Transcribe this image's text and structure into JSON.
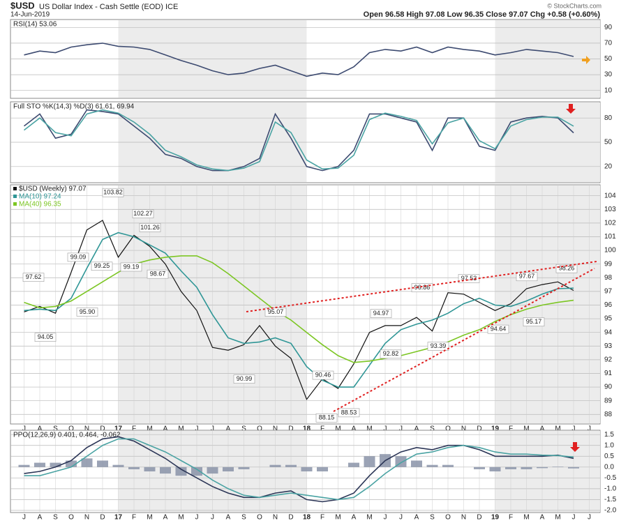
{
  "header": {
    "symbol": "$USD",
    "name": "US Dollar Index - Cash Settle (EOD) ICE",
    "date": "14-Jun-2019",
    "quote": "Open 96.58  High 97.08  Low 96.35  Close 97.07  Chg +0.58 (+0.60%)",
    "credit": "© StockCharts.com"
  },
  "chart_data": [
    {
      "type": "line",
      "title": "RSI(14) 53.06",
      "ylim": [
        0,
        100
      ],
      "yticks": [
        10,
        30,
        50,
        70,
        90
      ],
      "grid": true,
      "series": [
        {
          "color": "#3c4a70",
          "values": [
            55,
            60,
            58,
            65,
            68,
            70,
            66,
            65,
            62,
            55,
            48,
            42,
            35,
            30,
            32,
            38,
            42,
            35,
            28,
            32,
            30,
            40,
            58,
            62,
            60,
            65,
            58,
            65,
            62,
            60,
            55,
            58,
            62,
            60,
            58,
            53.06,
            null
          ]
        }
      ]
    },
    {
      "type": "line",
      "title": "Full STO %K(14,3) %D(3) 61.61, 69.94",
      "ylim": [
        0,
        100
      ],
      "yticks": [
        20,
        50,
        80
      ],
      "grid": true,
      "series": [
        {
          "color": "#3c4a70",
          "values": [
            70,
            85,
            55,
            60,
            90,
            88,
            85,
            70,
            55,
            35,
            30,
            20,
            15,
            15,
            20,
            30,
            85,
            55,
            20,
            15,
            20,
            40,
            85,
            85,
            80,
            75,
            40,
            80,
            80,
            45,
            40,
            75,
            80,
            82,
            80,
            61.61,
            null
          ]
        },
        {
          "color": "#4aa3a3",
          "values": [
            65,
            80,
            62,
            58,
            85,
            90,
            86,
            75,
            60,
            40,
            32,
            22,
            17,
            15,
            18,
            26,
            75,
            62,
            28,
            17,
            18,
            34,
            78,
            86,
            82,
            77,
            48,
            74,
            80,
            52,
            42,
            70,
            78,
            81,
            81,
            69.94,
            null
          ]
        }
      ]
    },
    {
      "type": "line",
      "ylim": [
        87.3,
        104.8
      ],
      "yticks": [
        88,
        89,
        90,
        91,
        92,
        93,
        94,
        95,
        96,
        97,
        98,
        99,
        100,
        101,
        102,
        103,
        104
      ],
      "grid": true,
      "categories": [
        "J",
        "A",
        "S",
        "O",
        "N",
        "D",
        "17",
        "F",
        "M",
        "A",
        "M",
        "J",
        "J",
        "A",
        "S",
        "O",
        "N",
        "D",
        "18",
        "F",
        "M",
        "A",
        "M",
        "J",
        "J",
        "A",
        "S",
        "O",
        "N",
        "D",
        "19",
        "F",
        "M",
        "A",
        "M",
        "J",
        "J"
      ],
      "series": [
        {
          "name": "$USD (Weekly) 97.07",
          "color": "#111111",
          "values": [
            95.5,
            95.9,
            95.4,
            98.4,
            101.5,
            102.2,
            99.5,
            101.1,
            100.3,
            99.0,
            97.0,
            95.6,
            92.9,
            92.7,
            93.1,
            94.5,
            93.0,
            92.1,
            89.1,
            90.6,
            89.9,
            91.7,
            94.0,
            94.5,
            94.5,
            95.1,
            94.1,
            96.9,
            96.8,
            96.2,
            95.6,
            96.1,
            97.2,
            97.5,
            97.7,
            97.07,
            null
          ]
        },
        {
          "name": "MA(10) 97.24",
          "color": "#2f9696",
          "values": [
            95.6,
            95.7,
            95.6,
            96.5,
            98.7,
            100.8,
            101.3,
            101.0,
            100.4,
            99.8,
            98.5,
            97.3,
            95.3,
            93.6,
            93.2,
            93.3,
            93.6,
            93.2,
            91.5,
            90.5,
            90.0,
            90.0,
            91.6,
            93.2,
            94.2,
            94.6,
            94.9,
            95.4,
            96.1,
            96.5,
            96.0,
            95.9,
            96.3,
            96.8,
            97.2,
            97.24,
            null
          ]
        },
        {
          "name": "MA(40) 96.35",
          "color": "#7cc623",
          "values": [
            96.2,
            95.8,
            95.9,
            96.3,
            97.0,
            97.7,
            98.4,
            99.0,
            99.3,
            99.5,
            99.6,
            99.6,
            99.1,
            98.3,
            97.4,
            96.5,
            95.6,
            94.9,
            94.0,
            93.1,
            92.3,
            91.8,
            91.9,
            92.1,
            92.3,
            92.6,
            92.9,
            93.3,
            93.8,
            94.2,
            94.8,
            95.3,
            95.7,
            96.0,
            96.2,
            96.35,
            null
          ]
        }
      ],
      "annotations": [
        {
          "text": "97.62",
          "value": 97.62
        },
        {
          "text": "94.05",
          "value": 94.05
        },
        {
          "text": "99.09",
          "value": 99.09
        },
        {
          "text": "95.90",
          "value": 95.9
        },
        {
          "text": "99.25",
          "value": 99.25
        },
        {
          "text": "103.82",
          "value": 103.82
        },
        {
          "text": "102.27",
          "value": 102.27
        },
        {
          "text": "99.19",
          "value": 99.19
        },
        {
          "text": "101.26",
          "value": 101.26
        },
        {
          "text": "98.67",
          "value": 98.67
        },
        {
          "text": "95.07",
          "value": 95.07
        },
        {
          "text": "90.99",
          "value": 90.99
        },
        {
          "text": "90.46",
          "value": 90.46
        },
        {
          "text": "88.15",
          "value": 88.15
        },
        {
          "text": "88.53",
          "value": 88.53
        },
        {
          "text": "94.97",
          "value": 94.97
        },
        {
          "text": "92.82",
          "value": 92.82
        },
        {
          "text": "96.86",
          "value": 96.86
        },
        {
          "text": "93.39",
          "value": 93.39
        },
        {
          "text": "97.53",
          "value": 97.53
        },
        {
          "text": "94.64",
          "value": 94.64
        },
        {
          "text": "97.67",
          "value": 97.67
        },
        {
          "text": "95.17",
          "value": 95.17
        },
        {
          "text": "98.26",
          "value": 98.26
        }
      ]
    },
    {
      "type": "line",
      "title": "PPO(12,26,9) 0.401, 0.464, -0.062",
      "ylim": [
        -2.1,
        1.7
      ],
      "grid": true,
      "yticks": [
        1.5,
        {
          "value": 1,
          "label": "1.0"
        },
        0.5,
        {
          "value": 0,
          "label": "0.0"
        },
        -0.5,
        {
          "value": -1,
          "label": "-1.0"
        },
        -1.5,
        {
          "value": -2,
          "label": "-2.0"
        }
      ],
      "categories": [
        "J",
        "A",
        "S",
        "O",
        "N",
        "D",
        "17",
        "F",
        "M",
        "A",
        "M",
        "J",
        "J",
        "A",
        "S",
        "O",
        "N",
        "D",
        "18",
        "F",
        "M",
        "A",
        "M",
        "J",
        "J",
        "A",
        "S",
        "O",
        "N",
        "D",
        "19",
        "F",
        "M",
        "A",
        "M",
        "J",
        "J"
      ],
      "series": [
        {
          "type": "bar",
          "color": "#8a93a8",
          "values": [
            0.1,
            0.2,
            0.2,
            0.3,
            0.4,
            0.3,
            0.1,
            -0.1,
            -0.2,
            -0.3,
            -0.4,
            -0.4,
            -0.3,
            -0.2,
            -0.1,
            0,
            0.1,
            0.1,
            -0.2,
            -0.2,
            0,
            0.2,
            0.5,
            0.6,
            0.5,
            0.3,
            0.1,
            0.1,
            0,
            -0.1,
            -0.2,
            -0.1,
            -0.1,
            -0.05,
            0.02,
            -0.062,
            null
          ]
        },
        {
          "color": "#2b3556",
          "values": [
            -0.3,
            -0.2,
            0,
            0.3,
            0.9,
            1.3,
            1.4,
            1.2,
            0.8,
            0.4,
            -0.1,
            -0.5,
            -0.9,
            -1.2,
            -1.4,
            -1.4,
            -1.2,
            -1.1,
            -1.5,
            -1.6,
            -1.5,
            -1.2,
            -0.4,
            0.3,
            0.7,
            0.9,
            0.8,
            1.0,
            1.0,
            0.8,
            0.5,
            0.5,
            0.5,
            0.5,
            0.55,
            0.401,
            null
          ]
        },
        {
          "color": "#4aa3a3",
          "values": [
            -0.4,
            -0.4,
            -0.2,
            0,
            0.5,
            1.0,
            1.3,
            1.3,
            1.0,
            0.7,
            0.3,
            -0.1,
            -0.6,
            -1.0,
            -1.3,
            -1.4,
            -1.3,
            -1.2,
            -1.3,
            -1.4,
            -1.5,
            -1.4,
            -0.9,
            -0.3,
            0.2,
            0.6,
            0.7,
            0.9,
            1.0,
            0.9,
            0.7,
            0.6,
            0.6,
            0.55,
            0.53,
            0.464,
            null
          ]
        }
      ]
    }
  ]
}
